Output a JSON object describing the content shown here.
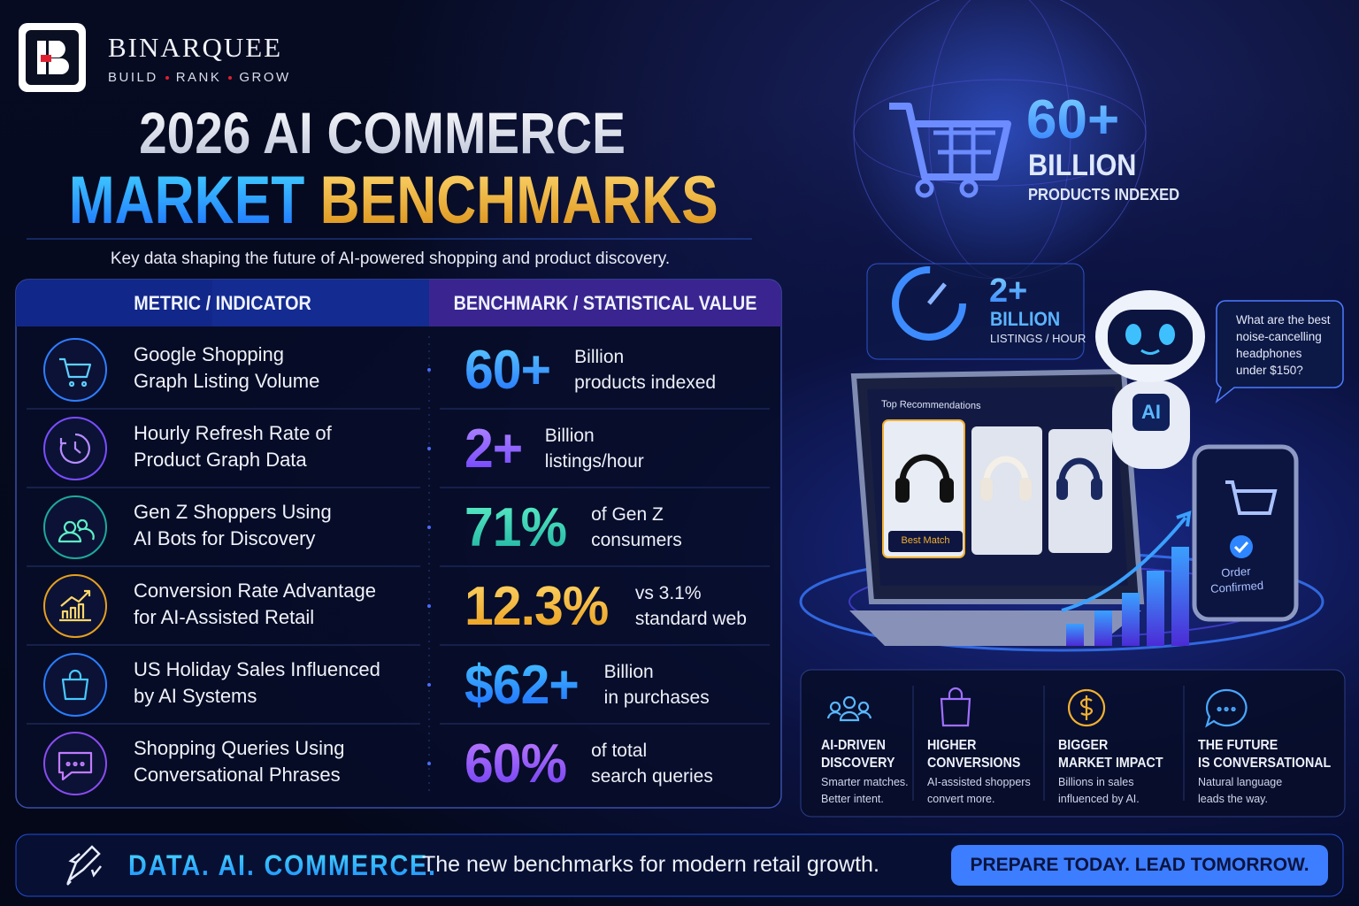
{
  "brand": {
    "name": "BINARQUEE",
    "tagline": [
      "BUILD",
      "RANK",
      "GROW"
    ]
  },
  "header": {
    "title_line1": "2026 AI COMMERCE",
    "title_word_blue": "MARKET",
    "title_word_gold": "BENCHMARKS",
    "subtitle": "Key data shaping the future of AI-powered shopping and product discovery."
  },
  "table": {
    "columns": [
      "METRIC / INDICATOR",
      "BENCHMARK / STATISTICAL VALUE"
    ],
    "rows": [
      {
        "metric": [
          "Google Shopping",
          "Graph Listing Volume"
        ],
        "value": "60+",
        "detail": [
          "Billion",
          "products indexed"
        ]
      },
      {
        "metric": [
          "Hourly Refresh Rate of",
          "Product Graph Data"
        ],
        "value": "2+",
        "detail": [
          "Billion",
          "listings/hour"
        ]
      },
      {
        "metric": [
          "Gen Z Shoppers Using",
          "AI Bots for Discovery"
        ],
        "value": "71%",
        "detail": [
          "of Gen Z",
          "consumers"
        ]
      },
      {
        "metric": [
          "Conversion Rate Advantage",
          "for AI-Assisted Retail"
        ],
        "value": "12.3%",
        "detail": [
          "vs 3.1%",
          "standard web"
        ]
      },
      {
        "metric": [
          "US Holiday Sales Influenced",
          "by AI Systems"
        ],
        "value": "$62+",
        "detail": [
          "Billion",
          "in purchases"
        ]
      },
      {
        "metric": [
          "Shopping Queries Using",
          "Conversational Phrases"
        ],
        "value": "60%",
        "detail": [
          "of total",
          "search queries"
        ]
      }
    ]
  },
  "hero": {
    "products": {
      "value": "60+",
      "unit": "BILLION",
      "label": "PRODUCTS INDEXED"
    },
    "listings": {
      "value": "2+",
      "unit": "BILLION",
      "label": "LISTINGS / HOUR"
    }
  },
  "assistant": {
    "badge": "AI",
    "question": [
      "What are the best",
      "noise-cancelling",
      "headphones",
      "under $150?"
    ]
  },
  "laptop": {
    "heading": "Top Recommendations",
    "best": "Best Match"
  },
  "phone": {
    "status": [
      "Order",
      "Confirmed"
    ]
  },
  "features": [
    {
      "title": [
        "AI-DRIVEN",
        "DISCOVERY"
      ],
      "text": [
        "Smarter matches.",
        "Better intent."
      ]
    },
    {
      "title": [
        "HIGHER",
        "CONVERSIONS"
      ],
      "text": [
        "AI-assisted shoppers",
        "convert more."
      ]
    },
    {
      "title": [
        "BIGGER",
        "MARKET IMPACT"
      ],
      "text": [
        "Billions in sales",
        "influenced by AI."
      ]
    },
    {
      "title": [
        "THE FUTURE",
        "IS CONVERSATIONAL"
      ],
      "text": [
        "Natural language",
        "leads the way."
      ]
    }
  ],
  "footer": {
    "lead": "DATA. AI. COMMERCE.",
    "text": "The new benchmarks for modern retail growth.",
    "cta": "PREPARE TODAY. LEAD TOMORROW."
  }
}
